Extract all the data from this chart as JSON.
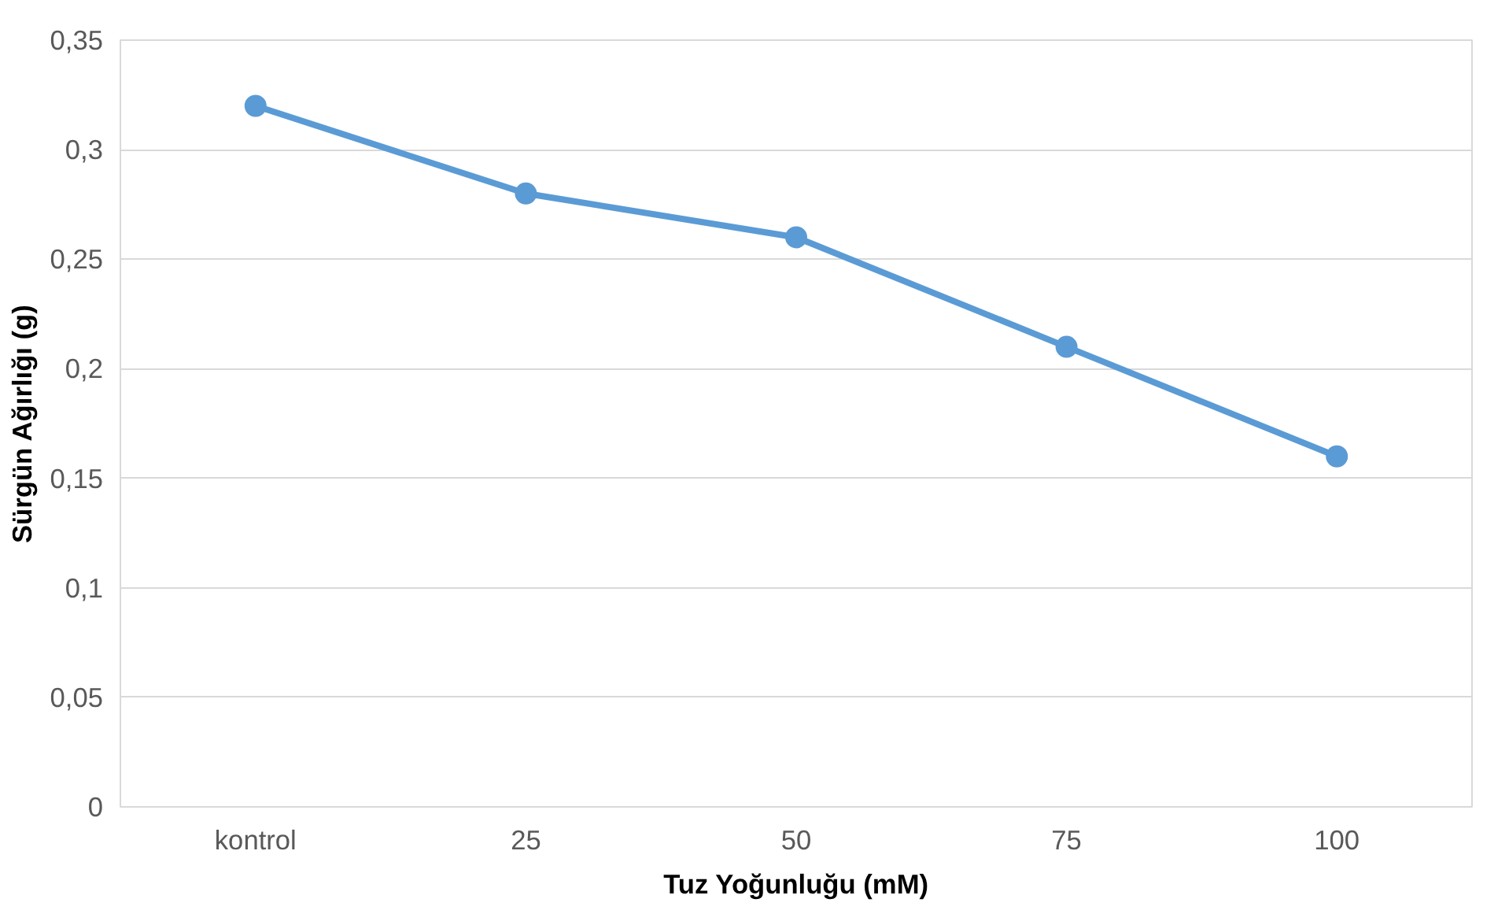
{
  "chart_data": {
    "type": "line",
    "xlabel": "Tuz Yoğunluğu (mM)",
    "ylabel": "Sürgün Ağırlığı (g)",
    "categories": [
      "kontrol",
      "25",
      "50",
      "75",
      "100"
    ],
    "series": [
      {
        "color": "#5b9bd5",
        "values": [
          0.32,
          0.28,
          0.26,
          0.21,
          0.16
        ]
      }
    ],
    "ylim": [
      0,
      0.35
    ],
    "yticks": [
      0,
      {
        "value": 0.05,
        "label": "0,05"
      },
      {
        "value": 0.1,
        "label": "0,1"
      },
      {
        "value": 0.15,
        "label": "0,15"
      },
      {
        "value": 0.2,
        "label": "0,2"
      },
      {
        "value": 0.25,
        "label": "0,25"
      },
      {
        "value": 0.3,
        "label": "0,3"
      },
      {
        "value": 0.35,
        "label": "0,35"
      }
    ],
    "grid": "y",
    "marker": "circle",
    "line_style": "solid"
  }
}
